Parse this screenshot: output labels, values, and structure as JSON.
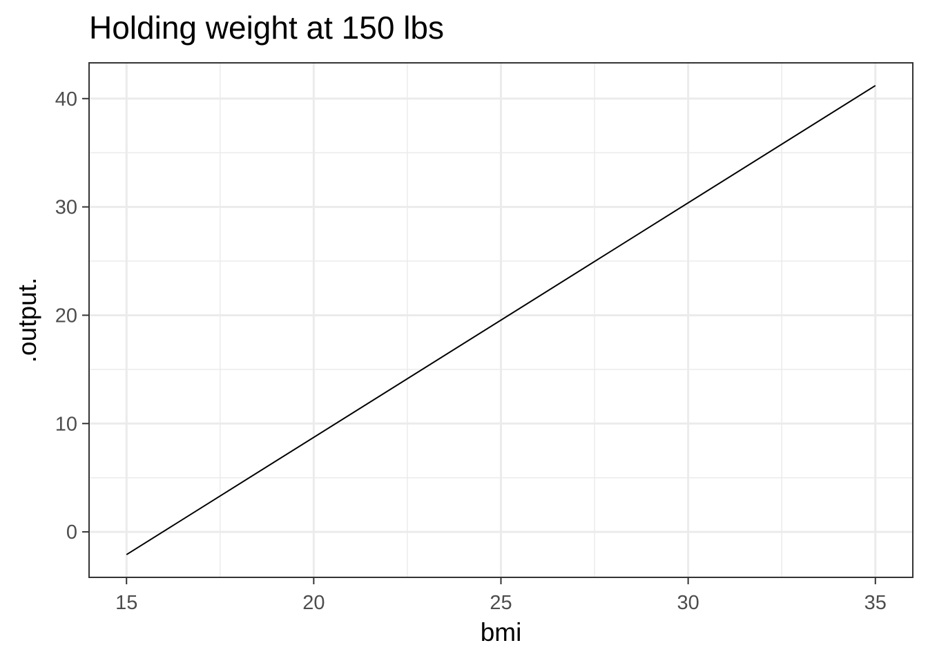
{
  "chart_data": {
    "type": "line",
    "title": "Holding weight at 150 lbs",
    "xlabel": "bmi",
    "ylabel": ".output.",
    "xlim": [
      14,
      36
    ],
    "ylim": [
      -4.2,
      43.3
    ],
    "x_ticks": [
      15,
      20,
      25,
      30,
      35
    ],
    "y_ticks": [
      0,
      10,
      20,
      30,
      40
    ],
    "x_minor_ticks": [
      17.5,
      22.5,
      27.5,
      32.5
    ],
    "y_minor_ticks": [
      5,
      15,
      25,
      35
    ],
    "grid": true,
    "series": [
      {
        "x": [
          15,
          35
        ],
        "y": [
          -2.1,
          41.2
        ]
      }
    ],
    "colors": {
      "line": "#000000",
      "grid_major": "#ebebeb",
      "grid_minor": "#ebebeb",
      "panel_border": "#333333",
      "tick_text": "#4d4d4d"
    }
  }
}
